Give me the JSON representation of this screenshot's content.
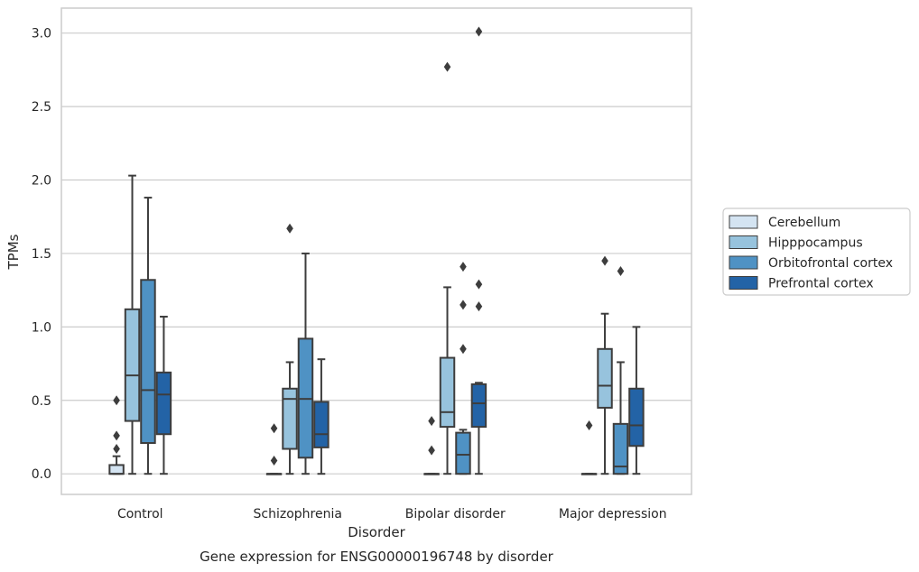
{
  "chart_data": {
    "type": "boxplot",
    "caption": "Gene expression for ENSG00000196748 by disorder",
    "xlabel": "Disorder",
    "ylabel": "TPMs",
    "ylim": [
      -0.14,
      3.17
    ],
    "yticks": [
      0.0,
      0.5,
      1.0,
      1.5,
      2.0,
      2.5,
      3.0
    ],
    "ytick_labels": [
      "0.0",
      "0.5",
      "1.0",
      "1.5",
      "2.0",
      "2.5",
      "3.0"
    ],
    "grid": "horizontal",
    "legend_position": "right",
    "categories": [
      "Control",
      "Schizophrenia",
      "Bipolar disorder",
      "Major depression"
    ],
    "series": [
      {
        "name": "Cerebellum",
        "color": "#d4e4f2",
        "boxes": [
          {
            "min": 0.0,
            "q1": 0.0,
            "median": 0.0,
            "q3": 0.06,
            "max": 0.12,
            "outliers": [
              0.17,
              0.26,
              0.5
            ]
          },
          {
            "min": 0.0,
            "q1": 0.0,
            "median": 0.0,
            "q3": 0.0,
            "max": 0.0,
            "outliers": [
              0.09,
              0.31
            ]
          },
          {
            "min": 0.0,
            "q1": 0.0,
            "median": 0.0,
            "q3": 0.0,
            "max": 0.0,
            "outliers": [
              0.16,
              0.36
            ]
          },
          {
            "min": 0.0,
            "q1": 0.0,
            "median": 0.0,
            "q3": 0.0,
            "max": 0.0,
            "outliers": [
              0.33
            ]
          }
        ]
      },
      {
        "name": "Hipppocampus",
        "color": "#97c3dd",
        "boxes": [
          {
            "min": 0.0,
            "q1": 0.36,
            "median": 0.67,
            "q3": 1.12,
            "max": 2.03,
            "outliers": []
          },
          {
            "min": 0.0,
            "q1": 0.17,
            "median": 0.51,
            "q3": 0.58,
            "max": 0.76,
            "outliers": [
              1.67
            ]
          },
          {
            "min": 0.0,
            "q1": 0.32,
            "median": 0.42,
            "q3": 0.79,
            "max": 1.27,
            "outliers": [
              2.77
            ]
          },
          {
            "min": 0.0,
            "q1": 0.45,
            "median": 0.6,
            "q3": 0.85,
            "max": 1.09,
            "outliers": [
              1.45
            ]
          }
        ]
      },
      {
        "name": "Orbitofrontal cortex",
        "color": "#4f92c4",
        "boxes": [
          {
            "min": 0.0,
            "q1": 0.21,
            "median": 0.57,
            "q3": 1.32,
            "max": 1.88,
            "outliers": []
          },
          {
            "min": 0.0,
            "q1": 0.11,
            "median": 0.51,
            "q3": 0.92,
            "max": 1.5,
            "outliers": []
          },
          {
            "min": 0.0,
            "q1": 0.0,
            "median": 0.13,
            "q3": 0.28,
            "max": 0.3,
            "outliers": [
              0.85,
              1.15,
              1.41
            ]
          },
          {
            "min": 0.0,
            "q1": 0.0,
            "median": 0.05,
            "q3": 0.34,
            "max": 0.76,
            "outliers": [
              1.38
            ]
          }
        ]
      },
      {
        "name": "Prefrontal cortex",
        "color": "#2363a6",
        "boxes": [
          {
            "min": 0.0,
            "q1": 0.27,
            "median": 0.54,
            "q3": 0.69,
            "max": 1.07,
            "outliers": []
          },
          {
            "min": 0.0,
            "q1": 0.18,
            "median": 0.27,
            "q3": 0.49,
            "max": 0.78,
            "outliers": []
          },
          {
            "min": 0.0,
            "q1": 0.32,
            "median": 0.48,
            "q3": 0.61,
            "max": 0.62,
            "outliers": [
              1.14,
              1.29,
              3.01
            ]
          },
          {
            "min": 0.0,
            "q1": 0.19,
            "median": 0.33,
            "q3": 0.58,
            "max": 1.0,
            "outliers": []
          }
        ]
      }
    ]
  }
}
